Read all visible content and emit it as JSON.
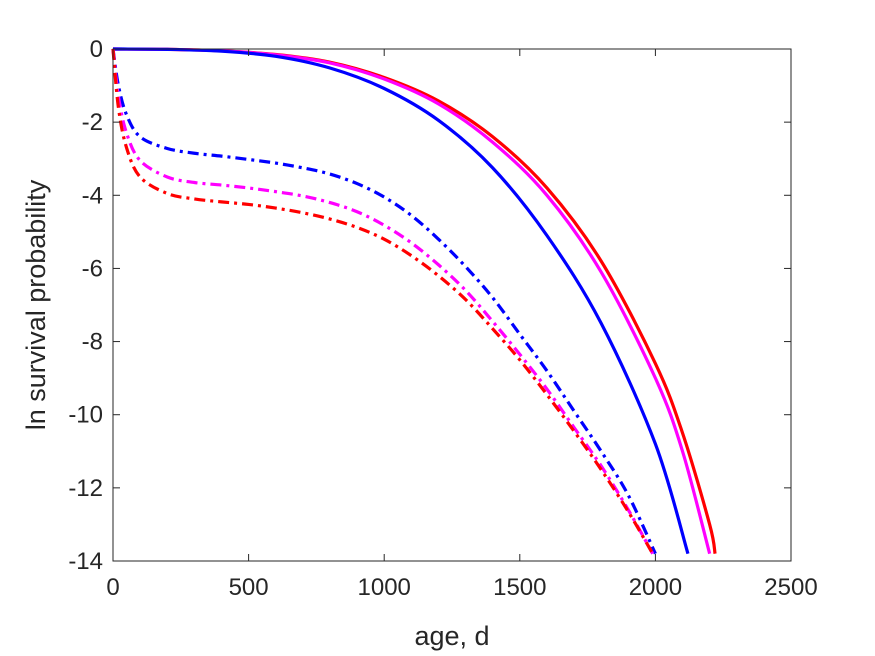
{
  "chart_data": {
    "type": "line",
    "title": "",
    "xlabel": "age, d",
    "ylabel": "ln survival probability",
    "xlim": [
      0,
      2500
    ],
    "ylim": [
      -14,
      0
    ],
    "xticks": [
      0,
      500,
      1000,
      1500,
      2000,
      2500
    ],
    "yticks": [
      0,
      -2,
      -4,
      -6,
      -8,
      -10,
      -12,
      -14
    ],
    "xtick_labels": [
      "0",
      "500",
      "1000",
      "1500",
      "2000",
      "2500"
    ],
    "ytick_labels": [
      "0",
      "-2",
      "-4",
      "-6",
      "-8",
      "-10",
      "-12",
      "-14"
    ],
    "grid": false,
    "legend": "none",
    "series": [
      {
        "color": "#ff0000",
        "style": "solid",
        "x": [
          0,
          200,
          400,
          600,
          800,
          1000,
          1200,
          1400,
          1600,
          1800,
          2000,
          2100,
          2200,
          2220
        ],
        "y": [
          0,
          -0.01,
          -0.05,
          -0.15,
          -0.36,
          -0.78,
          -1.42,
          -2.4,
          -3.8,
          -5.8,
          -8.6,
          -10.5,
          -13.0,
          -13.8
        ]
      },
      {
        "color": "#ff00ff",
        "style": "solid",
        "x": [
          0,
          200,
          400,
          600,
          800,
          1000,
          1200,
          1400,
          1600,
          1800,
          2000,
          2100,
          2200
        ],
        "y": [
          0,
          -0.01,
          -0.05,
          -0.16,
          -0.38,
          -0.82,
          -1.5,
          -2.55,
          -4.0,
          -6.1,
          -9.0,
          -11.0,
          -13.8
        ]
      },
      {
        "color": "#0000ff",
        "style": "solid",
        "x": [
          0,
          200,
          400,
          600,
          800,
          1000,
          1200,
          1400,
          1600,
          1800,
          2000,
          2120
        ],
        "y": [
          0,
          -0.01,
          -0.06,
          -0.2,
          -0.52,
          -1.08,
          -1.95,
          -3.25,
          -5.1,
          -7.5,
          -10.8,
          -13.8
        ]
      },
      {
        "color": "#0000ff",
        "style": "dashdot",
        "x": [
          0,
          20,
          50,
          100,
          200,
          300,
          400,
          500,
          600,
          700,
          800,
          900,
          1000,
          1100,
          1200,
          1300,
          1400,
          1500,
          1600,
          1700,
          1800,
          1900,
          2000
        ],
        "y": [
          0,
          -1.0,
          -1.8,
          -2.4,
          -2.72,
          -2.85,
          -2.93,
          -3.02,
          -3.12,
          -3.25,
          -3.42,
          -3.68,
          -4.05,
          -4.55,
          -5.2,
          -5.95,
          -6.8,
          -7.8,
          -8.8,
          -9.9,
          -11.0,
          -12.2,
          -13.8
        ]
      },
      {
        "color": "#ff00ff",
        "style": "dashdot",
        "x": [
          0,
          20,
          50,
          100,
          200,
          300,
          400,
          500,
          600,
          700,
          800,
          900,
          1000,
          1100,
          1200,
          1300,
          1400,
          1500,
          1600,
          1700,
          1800,
          1900,
          1990
        ],
        "y": [
          0,
          -1.3,
          -2.3,
          -3.05,
          -3.5,
          -3.65,
          -3.72,
          -3.8,
          -3.9,
          -4.02,
          -4.2,
          -4.45,
          -4.82,
          -5.3,
          -5.9,
          -6.6,
          -7.45,
          -8.35,
          -9.3,
          -10.35,
          -11.4,
          -12.6,
          -13.8
        ]
      },
      {
        "color": "#ff0000",
        "style": "dashdot",
        "x": [
          0,
          20,
          50,
          100,
          200,
          300,
          400,
          500,
          600,
          700,
          800,
          900,
          1000,
          1100,
          1200,
          1300,
          1400,
          1500,
          1600,
          1700,
          1800,
          1900,
          1990
        ],
        "y": [
          0,
          -1.6,
          -2.7,
          -3.5,
          -3.95,
          -4.1,
          -4.18,
          -4.25,
          -4.35,
          -4.48,
          -4.65,
          -4.88,
          -5.2,
          -5.65,
          -6.2,
          -6.85,
          -7.65,
          -8.5,
          -9.45,
          -10.45,
          -11.5,
          -12.65,
          -13.8
        ]
      }
    ]
  }
}
